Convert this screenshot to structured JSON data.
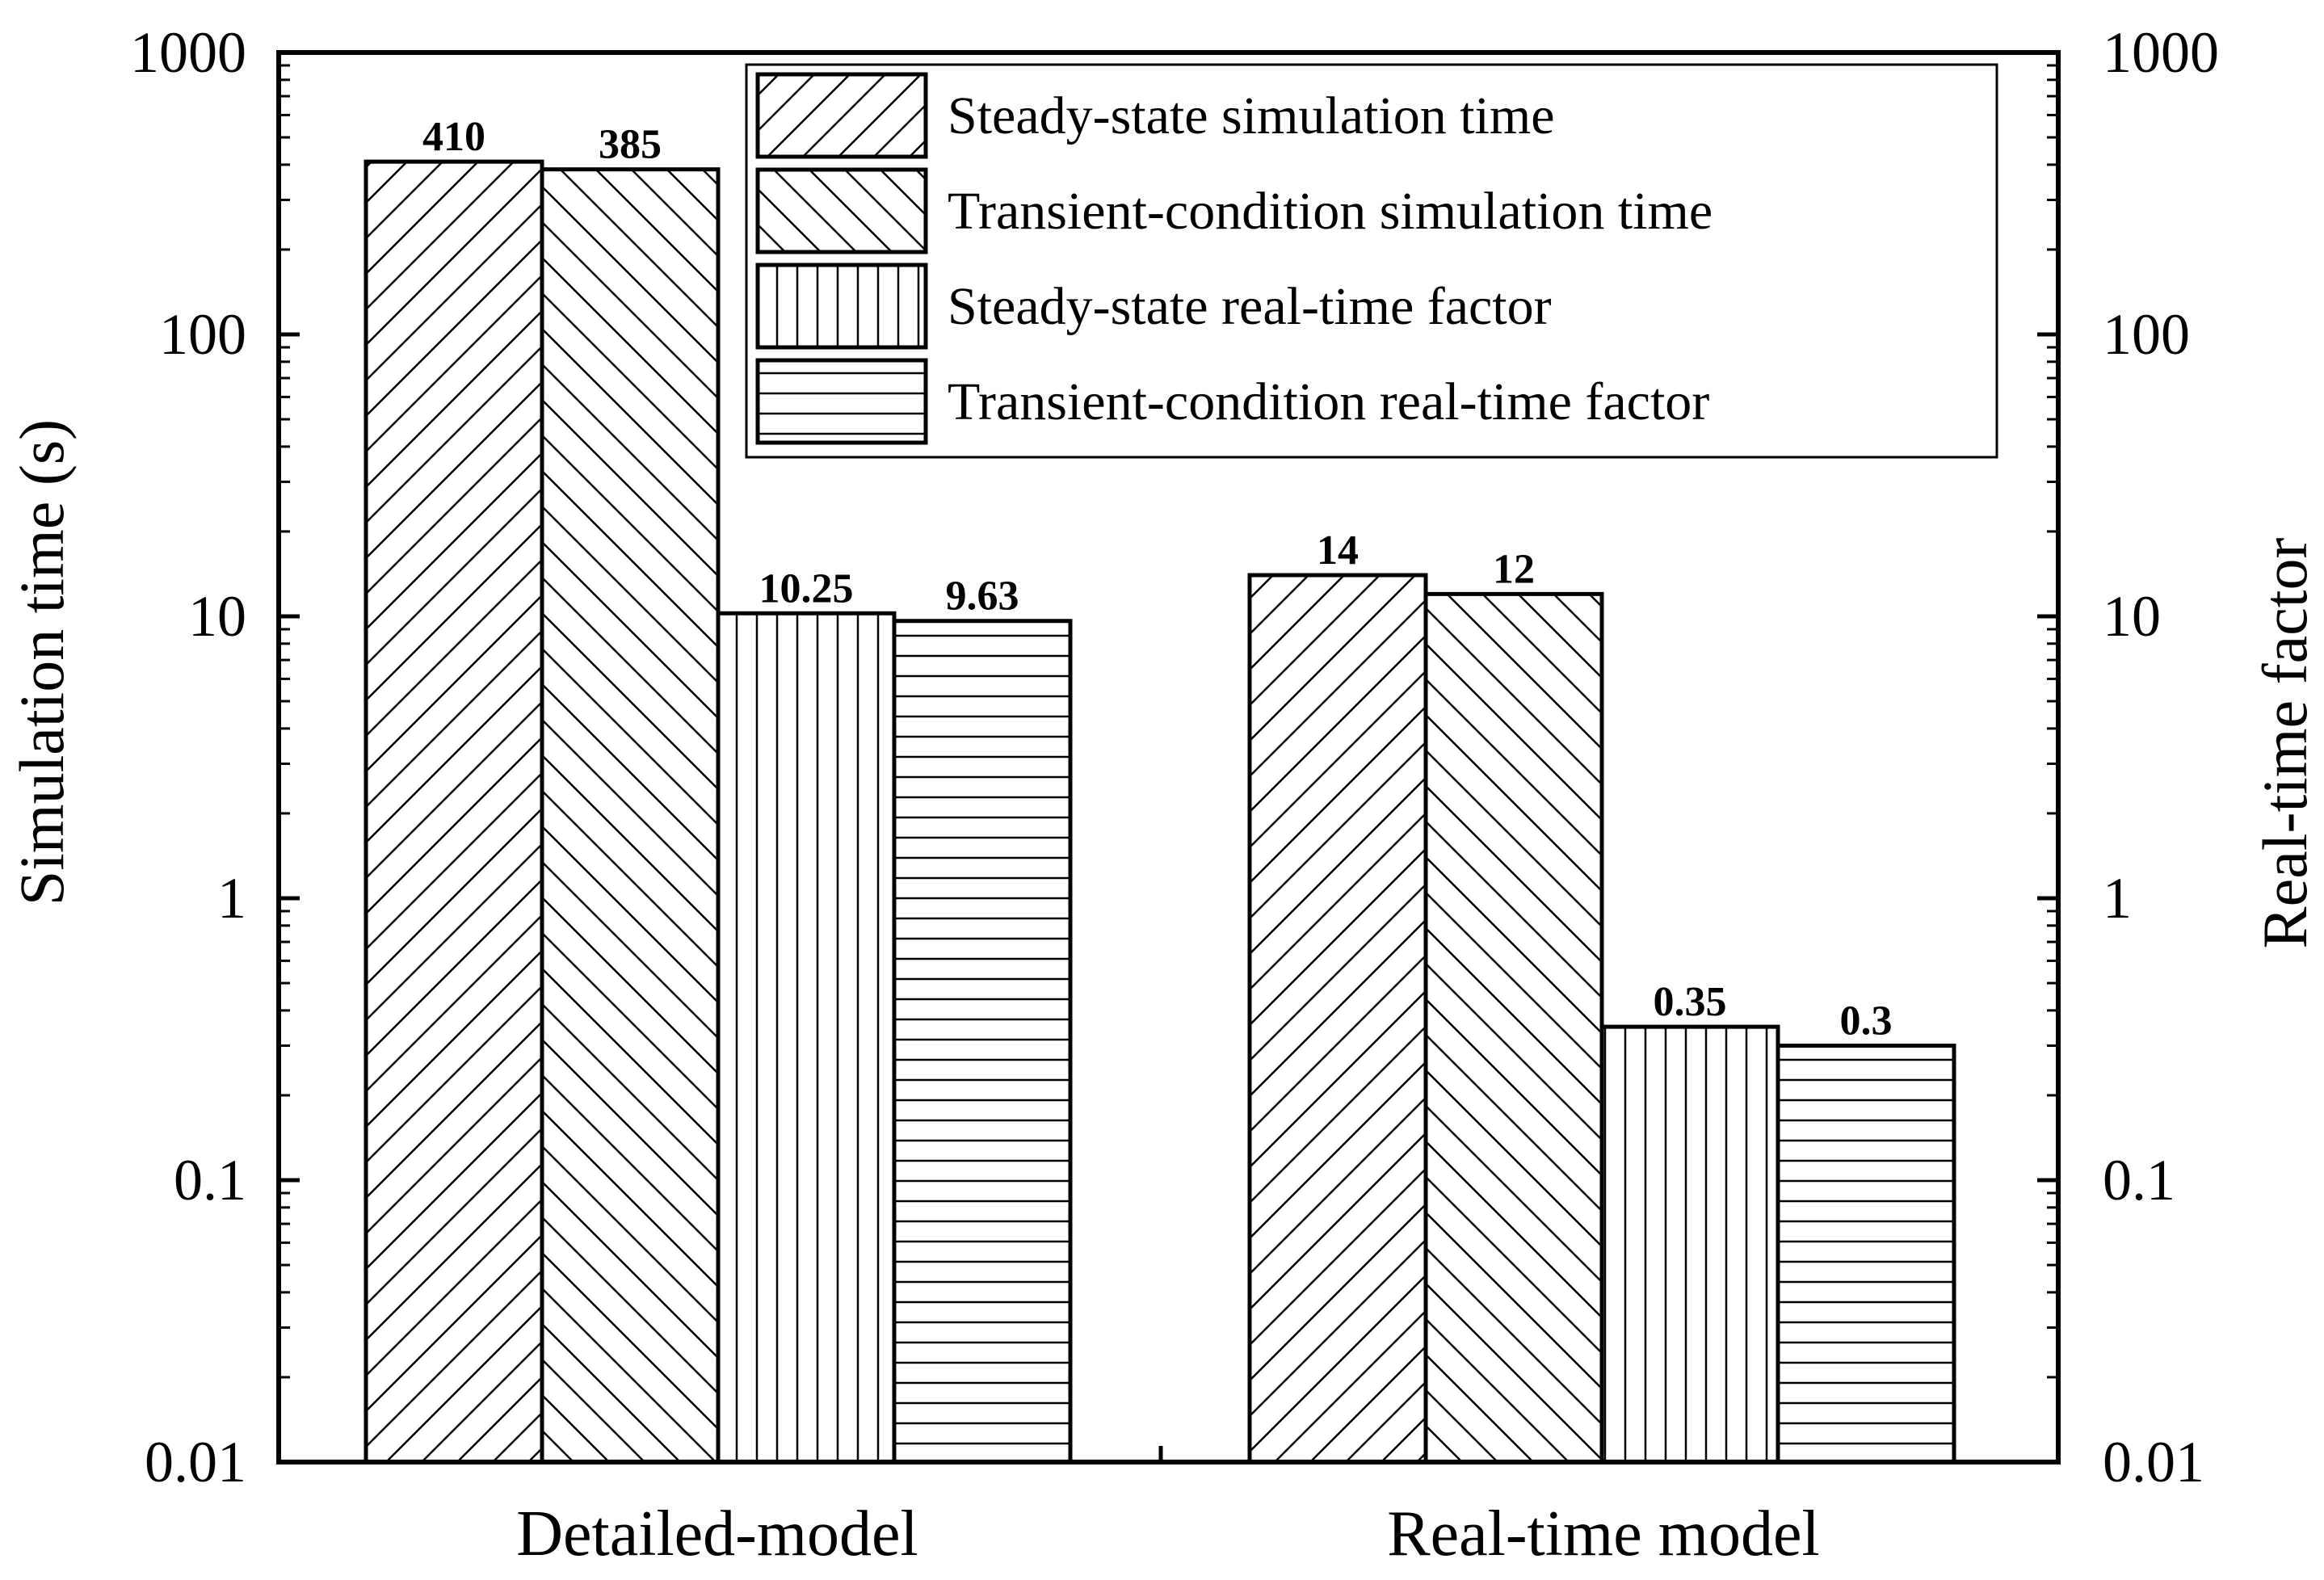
{
  "chart_data": {
    "type": "bar",
    "title": "",
    "xlabel": "",
    "ylabel": "Simulation time (s)",
    "y2label": "Real-time factor",
    "yscale": "log",
    "ylim": [
      0.01,
      1000
    ],
    "yticks": [
      "0.01",
      "0.1",
      "1",
      "10",
      "100",
      "1000"
    ],
    "y2ticks": [
      "0.01",
      "0.1",
      "1",
      "10",
      "100",
      "1000"
    ],
    "categories": [
      "Detailed-model",
      "Real-time model"
    ],
    "series": [
      {
        "name": "Steady-state simulation time",
        "values": [
          410,
          14
        ],
        "labels": [
          "410",
          "14"
        ],
        "pattern": "diag-right"
      },
      {
        "name": "Transient-condition simulation time",
        "values": [
          385,
          12
        ],
        "labels": [
          "385",
          "12"
        ],
        "pattern": "diag-left"
      },
      {
        "name": "Steady-state real-time factor",
        "values": [
          10.25,
          0.35
        ],
        "labels": [
          "10.25",
          "0.35"
        ],
        "pattern": "vertical"
      },
      {
        "name": "Transient-condition real-time factor",
        "values": [
          9.63,
          0.3
        ],
        "labels": [
          "9.63",
          "0.3"
        ],
        "pattern": "horizontal"
      }
    ],
    "legend_position": "top-right",
    "grid": false,
    "colors": {
      "stroke": "#000000",
      "background": "#ffffff"
    }
  }
}
